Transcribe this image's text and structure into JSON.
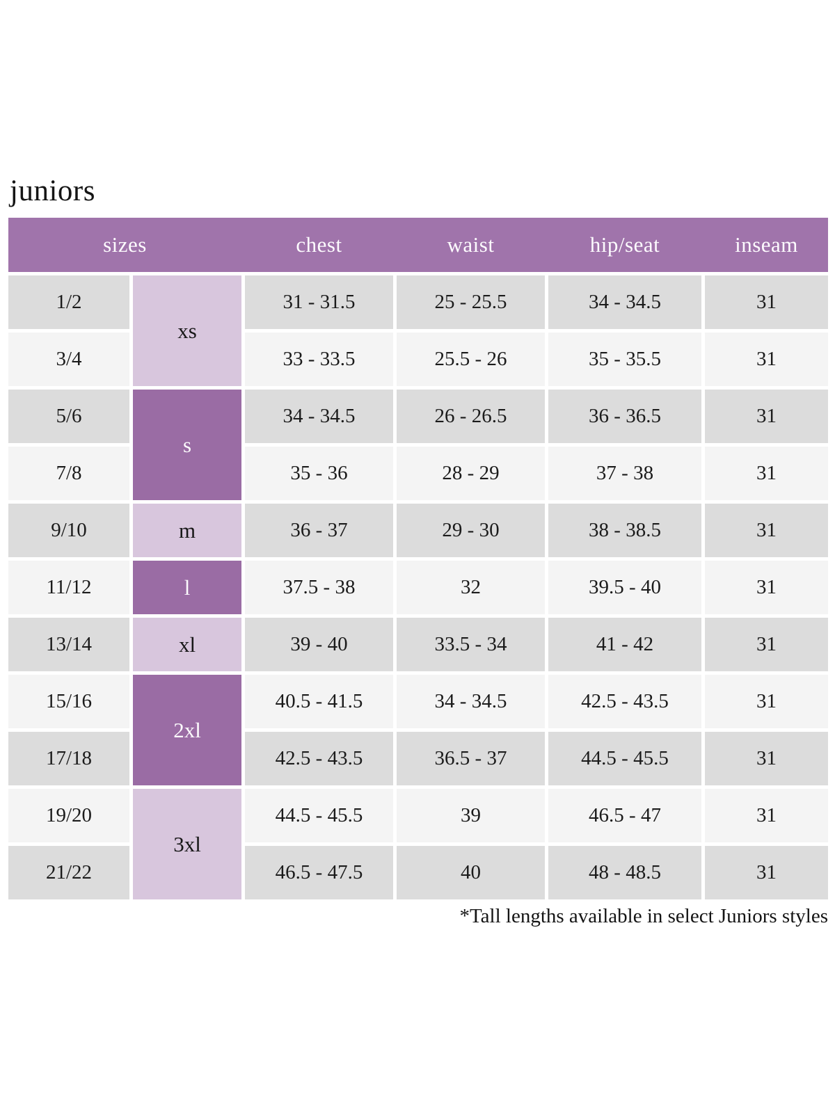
{
  "page": {
    "title": "juniors",
    "footnote": "*Tall lengths available in select Juniors styles"
  },
  "colors": {
    "header_purple": "#a074ab",
    "band_dark_purple": "#9a6ca4",
    "band_light_purple": "#d8c6dd",
    "row_grey": "#dcdcdc",
    "row_light": "#f4f4f4",
    "header_text": "#fdfbfe",
    "body_text": "#1b1b1b"
  },
  "table": {
    "headers": [
      "sizes",
      "chest",
      "waist",
      "hip/seat",
      "inseam"
    ],
    "size_bands": [
      {
        "label": "xs",
        "rows": 2,
        "shade": "light"
      },
      {
        "label": "s",
        "rows": 2,
        "shade": "dark"
      },
      {
        "label": "m",
        "rows": 1,
        "shade": "light"
      },
      {
        "label": "l",
        "rows": 1,
        "shade": "dark"
      },
      {
        "label": "xl",
        "rows": 1,
        "shade": "light"
      },
      {
        "label": "2xl",
        "rows": 2,
        "shade": "dark"
      },
      {
        "label": "3xl",
        "rows": 2,
        "shade": "light"
      }
    ],
    "rows": [
      {
        "size": "1/2",
        "chest": "31 - 31.5",
        "waist": "25 - 25.5",
        "hip_seat": "34 - 34.5",
        "inseam": "31"
      },
      {
        "size": "3/4",
        "chest": "33 - 33.5",
        "waist": "25.5 - 26",
        "hip_seat": "35 - 35.5",
        "inseam": "31"
      },
      {
        "size": "5/6",
        "chest": "34 - 34.5",
        "waist": "26 - 26.5",
        "hip_seat": "36 - 36.5",
        "inseam": "31"
      },
      {
        "size": "7/8",
        "chest": "35 - 36",
        "waist": "28 - 29",
        "hip_seat": "37 - 38",
        "inseam": "31"
      },
      {
        "size": "9/10",
        "chest": "36 - 37",
        "waist": "29 - 30",
        "hip_seat": "38 - 38.5",
        "inseam": "31"
      },
      {
        "size": "11/12",
        "chest": "37.5 - 38",
        "waist": "32",
        "hip_seat": "39.5 - 40",
        "inseam": "31"
      },
      {
        "size": "13/14",
        "chest": "39 - 40",
        "waist": "33.5 - 34",
        "hip_seat": "41 - 42",
        "inseam": "31"
      },
      {
        "size": "15/16",
        "chest": "40.5 - 41.5",
        "waist": "34 - 34.5",
        "hip_seat": "42.5 - 43.5",
        "inseam": "31"
      },
      {
        "size": "17/18",
        "chest": "42.5 - 43.5",
        "waist": "36.5 - 37",
        "hip_seat": "44.5 - 45.5",
        "inseam": "31"
      },
      {
        "size": "19/20",
        "chest": "44.5 - 45.5",
        "waist": "39",
        "hip_seat": "46.5 - 47",
        "inseam": "31"
      },
      {
        "size": "21/22",
        "chest": "46.5 - 47.5",
        "waist": "40",
        "hip_seat": "48 - 48.5",
        "inseam": "31"
      }
    ]
  }
}
